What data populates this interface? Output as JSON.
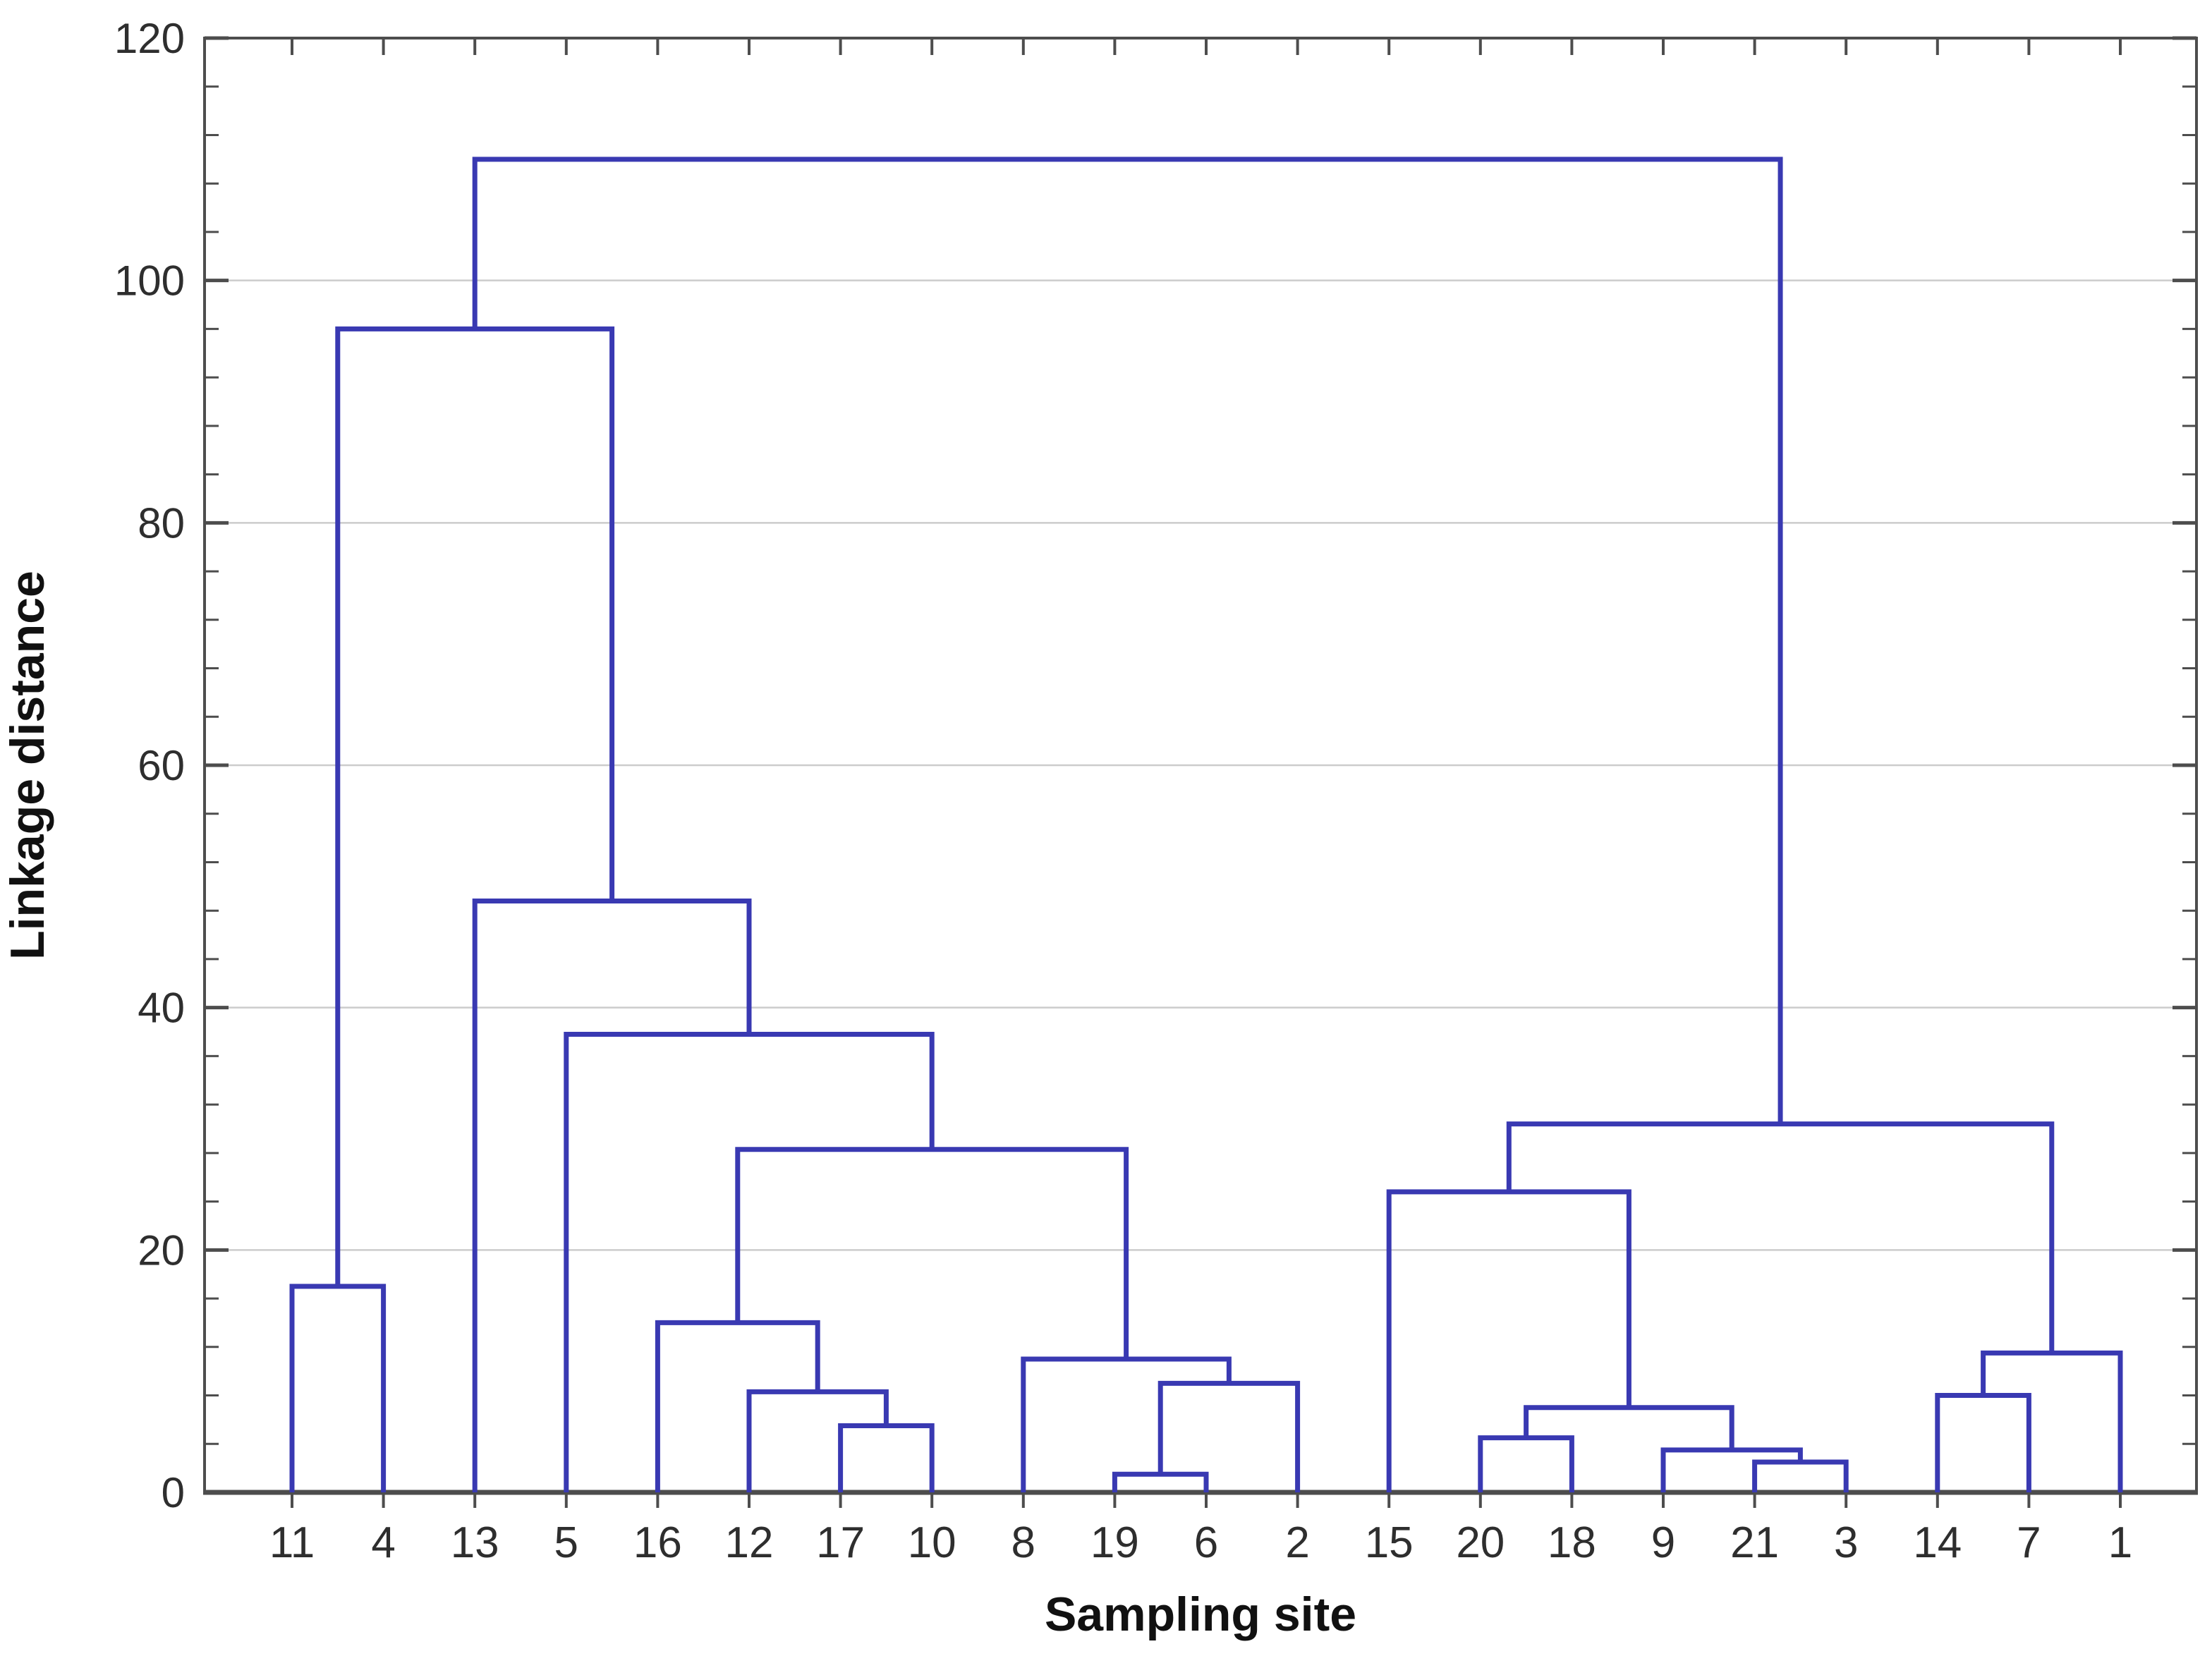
{
  "chart_data": {
    "type": "dendrogram",
    "title": "",
    "xlabel": "Sampling site",
    "ylabel": "Linkage distance",
    "ylim": [
      0,
      120
    ],
    "y_major_step": 20,
    "y_minor_step": 4,
    "y_tick_labels": [
      "0",
      "20",
      "40",
      "60",
      "80",
      "100",
      "120"
    ],
    "grid": true,
    "legend_position": "none",
    "leaves": [
      "11",
      "4",
      "13",
      "5",
      "16",
      "12",
      "17",
      "10",
      "8",
      "19",
      "6",
      "2",
      "15",
      "20",
      "18",
      "9",
      "21",
      "3",
      "14",
      "7",
      "1"
    ],
    "merges": [
      {
        "id": "m1",
        "a": "19",
        "b": "6",
        "h": 1.5
      },
      {
        "id": "m2",
        "a": "21",
        "b": "3",
        "h": 2.5
      },
      {
        "id": "m3",
        "a": "9",
        "b": "m2",
        "h": 3.5
      },
      {
        "id": "m4",
        "a": "20",
        "b": "18",
        "h": 4.5
      },
      {
        "id": "m5",
        "a": "17",
        "b": "10",
        "h": 5.5
      },
      {
        "id": "m6",
        "a": "m4",
        "b": "m3",
        "h": 7
      },
      {
        "id": "m7",
        "a": "14",
        "b": "7",
        "h": 8
      },
      {
        "id": "m8",
        "a": "12",
        "b": "m5",
        "h": 8.3
      },
      {
        "id": "m9",
        "a": "m1",
        "b": "2",
        "h": 9
      },
      {
        "id": "m10",
        "a": "8",
        "b": "m9",
        "h": 11
      },
      {
        "id": "m11",
        "a": "m7",
        "b": "1",
        "h": 11.5
      },
      {
        "id": "m12",
        "a": "16",
        "b": "m8",
        "h": 14
      },
      {
        "id": "m13",
        "a": "11",
        "b": "4",
        "h": 17
      },
      {
        "id": "m14",
        "a": "15",
        "b": "m6",
        "h": 24.8
      },
      {
        "id": "m15",
        "a": "m12",
        "b": "m10",
        "h": 28.3
      },
      {
        "id": "m16",
        "a": "m14",
        "b": "m11",
        "h": 30.4
      },
      {
        "id": "m17",
        "a": "5",
        "b": "m15",
        "h": 37.8
      },
      {
        "id": "m18",
        "a": "13",
        "b": "m17",
        "h": 48.8
      },
      {
        "id": "m19",
        "a": "m13",
        "b": "m18",
        "h": 96
      },
      {
        "id": "m20",
        "a": "m19",
        "b": "m16",
        "h": 110
      }
    ],
    "colors": {
      "line": "#3939b2",
      "axis": "#4d4d4d",
      "grid": "#cccccc",
      "tick_text": "#2e2e2e",
      "title_text": "#111111",
      "background": "#ffffff"
    }
  }
}
